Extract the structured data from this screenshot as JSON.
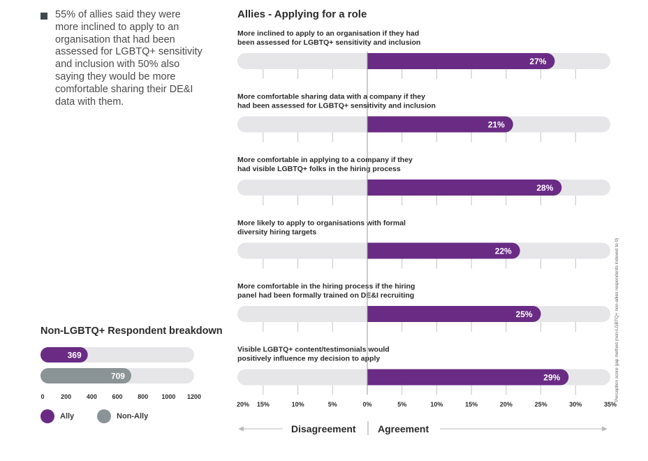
{
  "bullet_text": "55% of allies said they were more inclined to apply to an organisation that had been assessed for LGBTQ+ sensitivity and inclusion with 50% also saying they would be more comfortable sharing their DE&I data with them.",
  "side_note": "Perception score gap method (non-LGBTQ+ non-allies respondents indexed to 0)",
  "directions": {
    "left": "Disagreement",
    "right": "Agreement"
  },
  "colors": {
    "ally": "#6a2b85",
    "non_ally": "#8a9396",
    "track": "#e6e6e8",
    "text": "#2b2b2b"
  },
  "chart_data": [
    {
      "type": "bar",
      "orientation": "horizontal",
      "title": "Allies - Applying for a role",
      "categories": [
        "More inclined to apply to an organisation if they had been assessed for LGBTQ+ sensitivity and inclusion",
        "More comfortable sharing data with a company if they had been assessed for LGBTQ+ sensitivity and inclusion",
        "More comfortable in applying to a company if they had visible LGBTQ+ folks in the hiring process",
        "More likely to apply to organisations with formal diversity hiring targets",
        "More comfortable in the hiring process if the hiring panel had been formally trained on DE&I recruiting",
        "Visible LGBTQ+ content/testimonials would positively influence my decision to apply"
      ],
      "category_lines": [
        [
          "More inclined to apply to an organisation if they had",
          "been assessed for LGBTQ+ sensitivity and inclusion"
        ],
        [
          "More comfortable sharing data with a company if they",
          "had been assessed for LGBTQ+ sensitivity and inclusion"
        ],
        [
          "More comfortable in applying to a company if they",
          "had visible LGBTQ+ folks in the hiring process"
        ],
        [
          "More likely to apply to organisations with formal",
          "diversity hiring targets"
        ],
        [
          "More comfortable in the hiring process if the hiring",
          "panel had been formally trained on DE&I recruiting"
        ],
        [
          "Visible LGBTQ+ content/testimonials would",
          "positively influence my decision to apply"
        ]
      ],
      "values": [
        27,
        21,
        28,
        22,
        25,
        29
      ],
      "value_labels": [
        "27%",
        "21%",
        "28%",
        "22%",
        "25%",
        "29%"
      ],
      "xlim": [
        -20,
        35
      ],
      "xticks": [
        -20,
        -15,
        -10,
        -5,
        0,
        5,
        10,
        15,
        20,
        25,
        30,
        35
      ],
      "xtick_labels": [
        "20%",
        "15%",
        "10%",
        "5%",
        "0%",
        "5%",
        "10%",
        "15%",
        "20%",
        "25%",
        "30%",
        "35%"
      ],
      "grid": true
    },
    {
      "type": "bar",
      "orientation": "horizontal",
      "title": "Non-LGBTQ+ Respondent breakdown",
      "series": [
        {
          "name": "Ally",
          "values": [
            369
          ]
        },
        {
          "name": "Non-Ally",
          "values": [
            709
          ]
        }
      ],
      "value_labels": [
        "369",
        "709"
      ],
      "xlim": [
        0,
        1200
      ],
      "xticks": [
        0,
        200,
        400,
        600,
        800,
        1000,
        1200
      ],
      "xtick_labels": [
        "0",
        "200",
        "400",
        "600",
        "800",
        "1000",
        "1200"
      ],
      "legend": "bottom"
    }
  ]
}
